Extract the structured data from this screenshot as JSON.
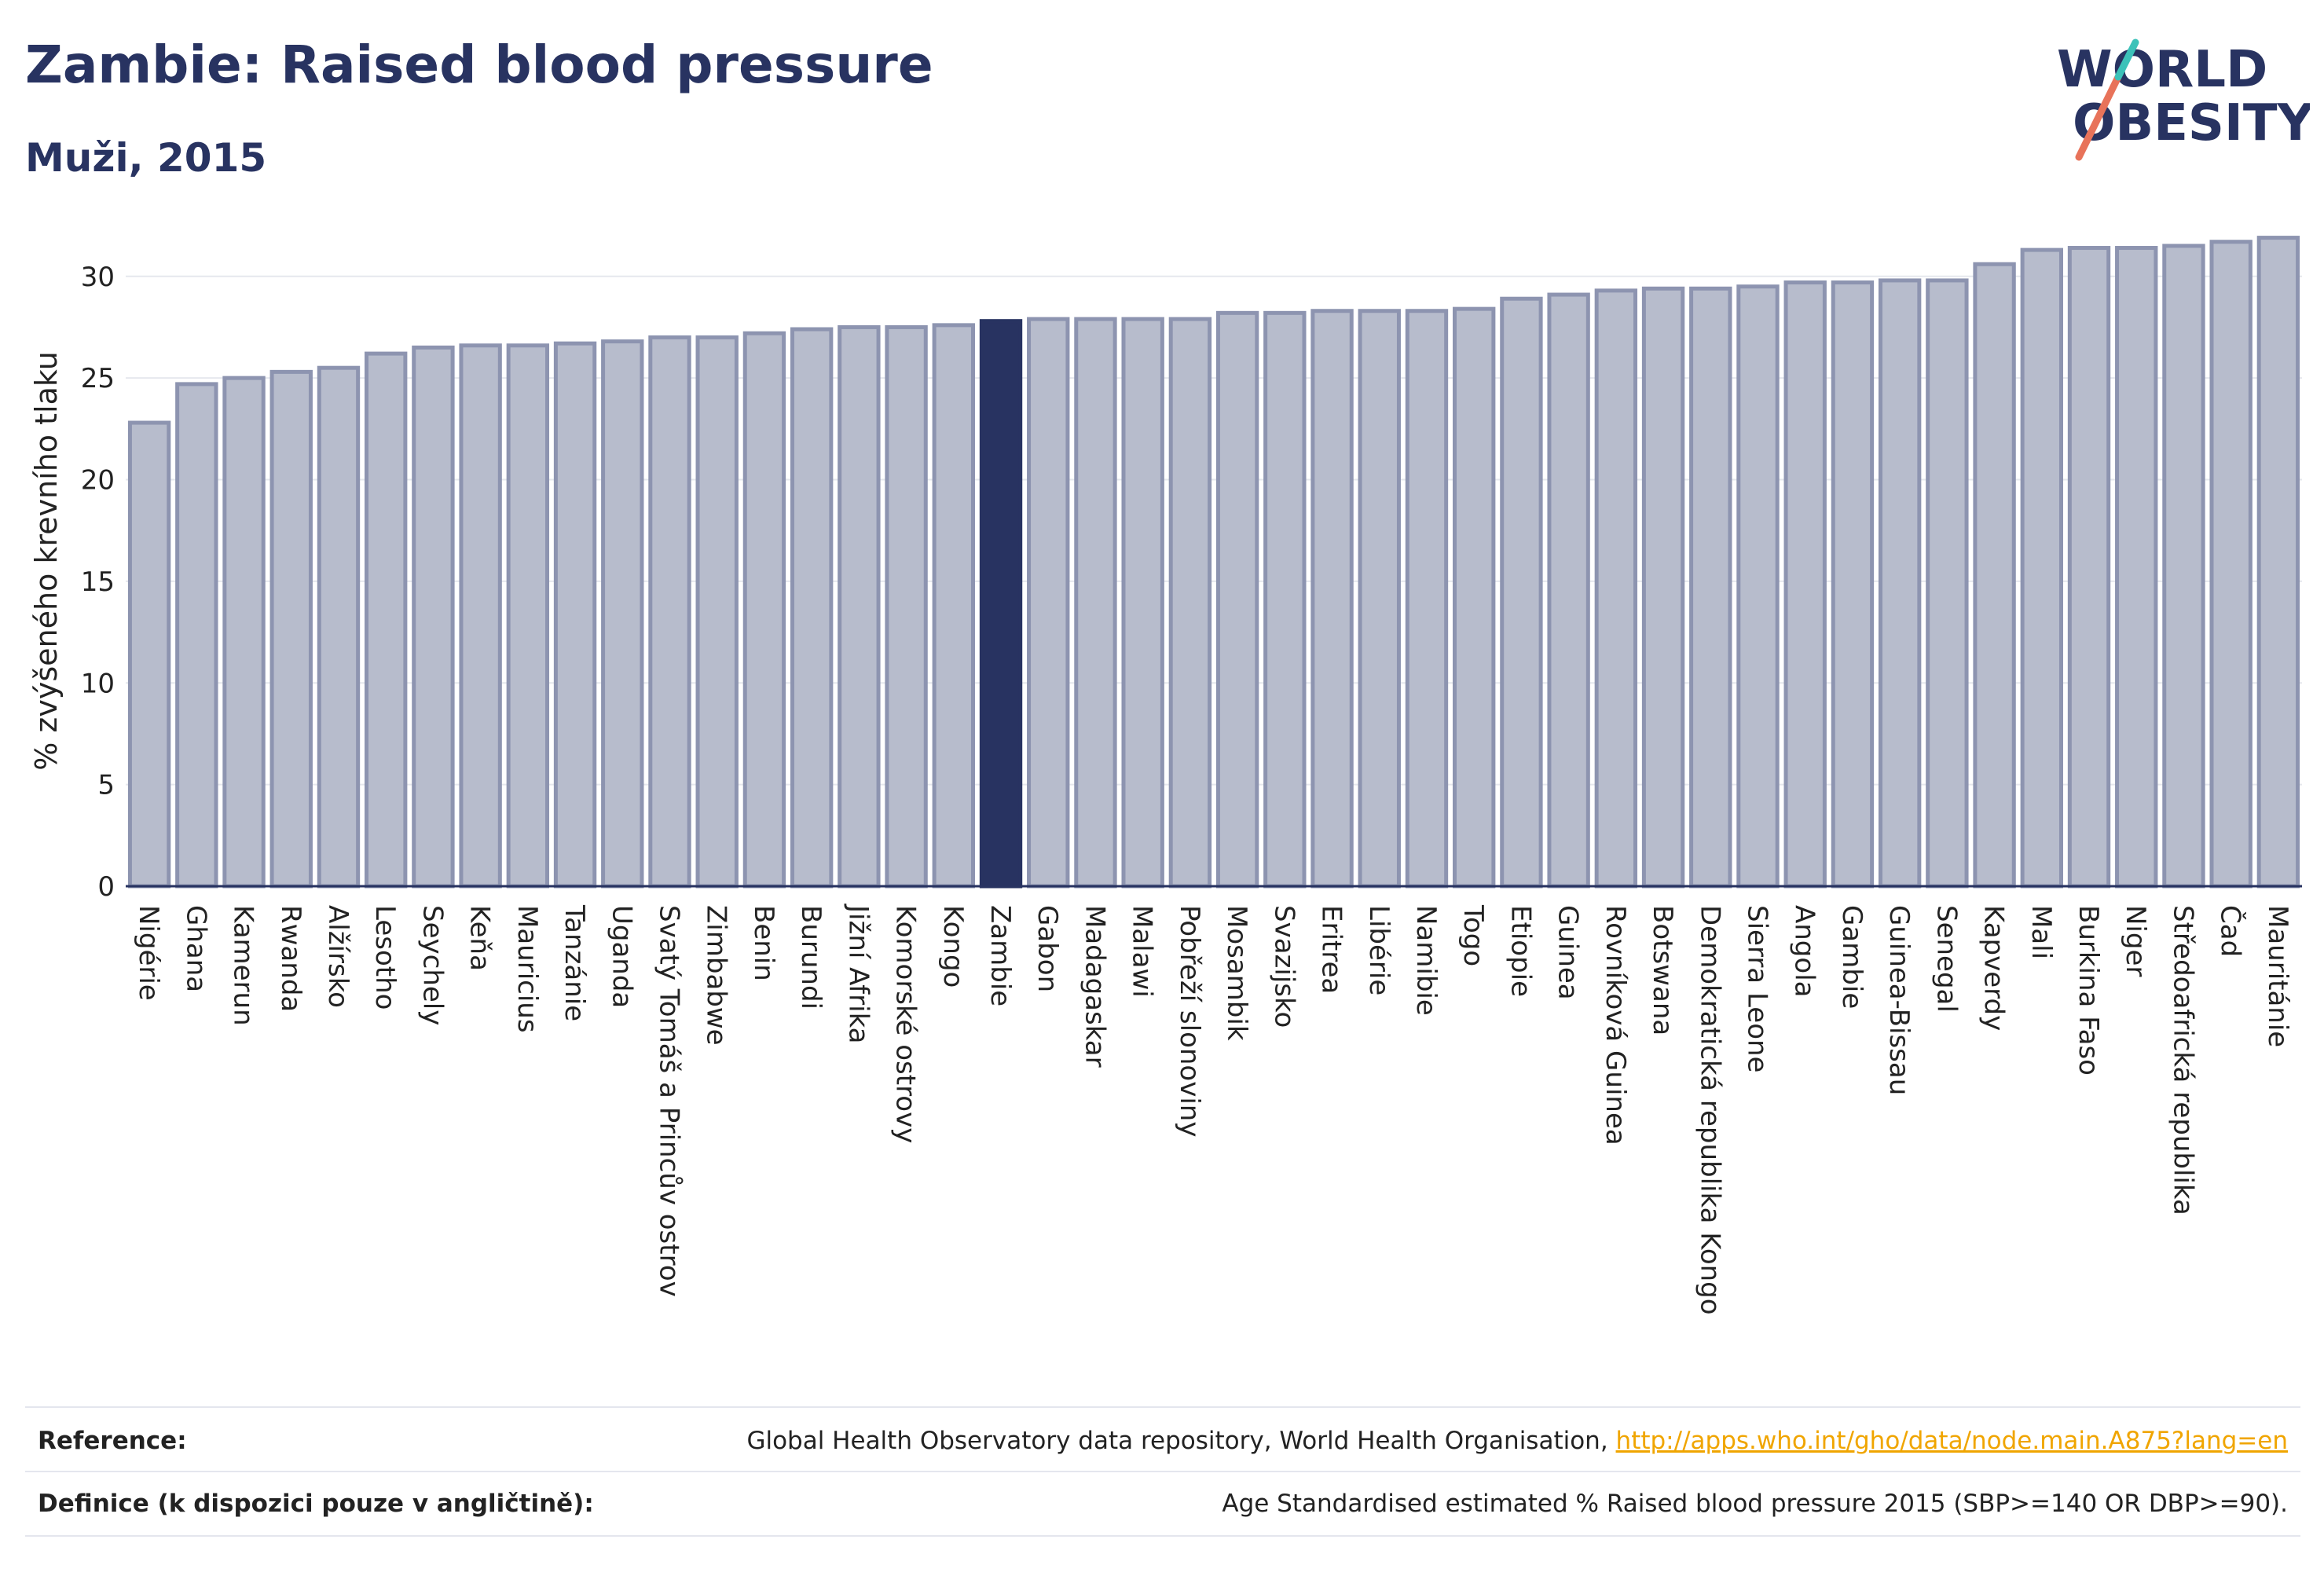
{
  "title": "Zambie: Raised blood pressure",
  "subtitle": "Muži, 2015",
  "logo": {
    "line1": "WORLD",
    "line2": "OBESITY"
  },
  "colors": {
    "bar": "#b7bccc",
    "bar_border": "#8d94b0",
    "highlight": "#283361",
    "grid": "#e6e8ee",
    "axis": "#283361"
  },
  "chart_data": {
    "type": "bar",
    "title": "Zambie: Raised blood pressure",
    "subtitle": "Muži, 2015",
    "ylabel": "% zvýšeného krevního tlaku",
    "xlabel": "",
    "ylim": [
      0,
      32
    ],
    "yticks": [
      0,
      5,
      10,
      15,
      20,
      25,
      30
    ],
    "highlight": "Zambie",
    "categories": [
      "Nigérie",
      "Ghana",
      "Kamerun",
      "Rwanda",
      "Alžírsko",
      "Lesotho",
      "Seychely",
      "Keňa",
      "Mauricius",
      "Tanzánie",
      "Uganda",
      "Svatý Tomáš a Princův ostrov",
      "Zimbabwe",
      "Benin",
      "Burundi",
      "Jižní Afrika",
      "Komorské ostrovy",
      "Kongo",
      "Zambie",
      "Gabon",
      "Madagaskar",
      "Malawi",
      "Pobřeží slonoviny",
      "Mosambik",
      "Svazijsko",
      "Eritrea",
      "Libérie",
      "Namibie",
      "Togo",
      "Etiopie",
      "Guinea",
      "Rovníková Guinea",
      "Botswana",
      "Demokratická republika Kongo",
      "Sierra Leone",
      "Angola",
      "Gambie",
      "Guinea-Bissau",
      "Senegal",
      "Kapverdy",
      "Mali",
      "Burkina Faso",
      "Niger",
      "Středoafrická republika",
      "Čad",
      "Mauritánie"
    ],
    "values": [
      22.8,
      24.7,
      25.0,
      25.3,
      25.5,
      26.2,
      26.5,
      26.6,
      26.6,
      26.7,
      26.8,
      27.0,
      27.0,
      27.2,
      27.4,
      27.5,
      27.5,
      27.6,
      27.8,
      27.9,
      27.9,
      27.9,
      27.9,
      28.2,
      28.2,
      28.3,
      28.3,
      28.3,
      28.4,
      28.9,
      29.1,
      29.3,
      29.4,
      29.4,
      29.5,
      29.7,
      29.7,
      29.8,
      29.8,
      30.6,
      31.3,
      31.4,
      31.4,
      31.5,
      31.7,
      31.9
    ]
  },
  "footer": {
    "reference_label": "Reference:",
    "reference_text": "Global Health Observatory data repository, World Health Organisation, ",
    "reference_link": "http://apps.who.int/gho/data/node.main.A875?lang=en",
    "definition_label": "Definice (k dispozici pouze v angličtině):",
    "definition_text": "Age Standardised estimated % Raised blood pressure 2015 (SBP>=140 OR DBP>=90)."
  }
}
